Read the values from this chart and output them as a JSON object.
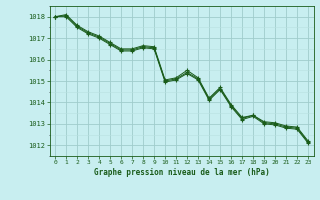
{
  "title": "Graphe pression niveau de la mer (hPa)",
  "background_color": "#c8eef0",
  "grid_color_major": "#a0cccc",
  "grid_color_minor": "#b8e0e0",
  "line_color": "#1a5c1a",
  "xlim": [
    -0.5,
    23.5
  ],
  "ylim": [
    1011.5,
    1018.5
  ],
  "yticks": [
    1012,
    1013,
    1014,
    1015,
    1016,
    1017,
    1018
  ],
  "xticks": [
    0,
    1,
    2,
    3,
    4,
    5,
    6,
    7,
    8,
    9,
    10,
    11,
    12,
    13,
    14,
    15,
    16,
    17,
    18,
    19,
    20,
    21,
    22,
    23
  ],
  "series1": [
    1018.0,
    1018.1,
    1017.6,
    1017.3,
    1017.1,
    1016.8,
    1016.5,
    1016.5,
    1016.65,
    1016.6,
    1015.05,
    1015.15,
    1015.5,
    1015.15,
    1014.2,
    1014.7,
    1013.9,
    1013.3,
    1013.4,
    1013.1,
    1013.05,
    1012.9,
    1012.85,
    1012.2
  ],
  "series2": [
    1018.0,
    1018.05,
    1017.55,
    1017.25,
    1017.05,
    1016.75,
    1016.45,
    1016.45,
    1016.6,
    1016.55,
    1015.0,
    1015.1,
    1015.4,
    1015.1,
    1014.15,
    1014.65,
    1013.85,
    1013.25,
    1013.4,
    1013.05,
    1013.0,
    1012.85,
    1012.8,
    1012.15
  ],
  "series3": [
    1018.0,
    1018.0,
    1017.5,
    1017.2,
    1017.0,
    1016.7,
    1016.4,
    1016.4,
    1016.55,
    1016.5,
    1014.95,
    1015.05,
    1015.35,
    1015.05,
    1014.1,
    1014.6,
    1013.8,
    1013.2,
    1013.35,
    1013.0,
    1012.95,
    1012.8,
    1012.75,
    1012.1
  ]
}
